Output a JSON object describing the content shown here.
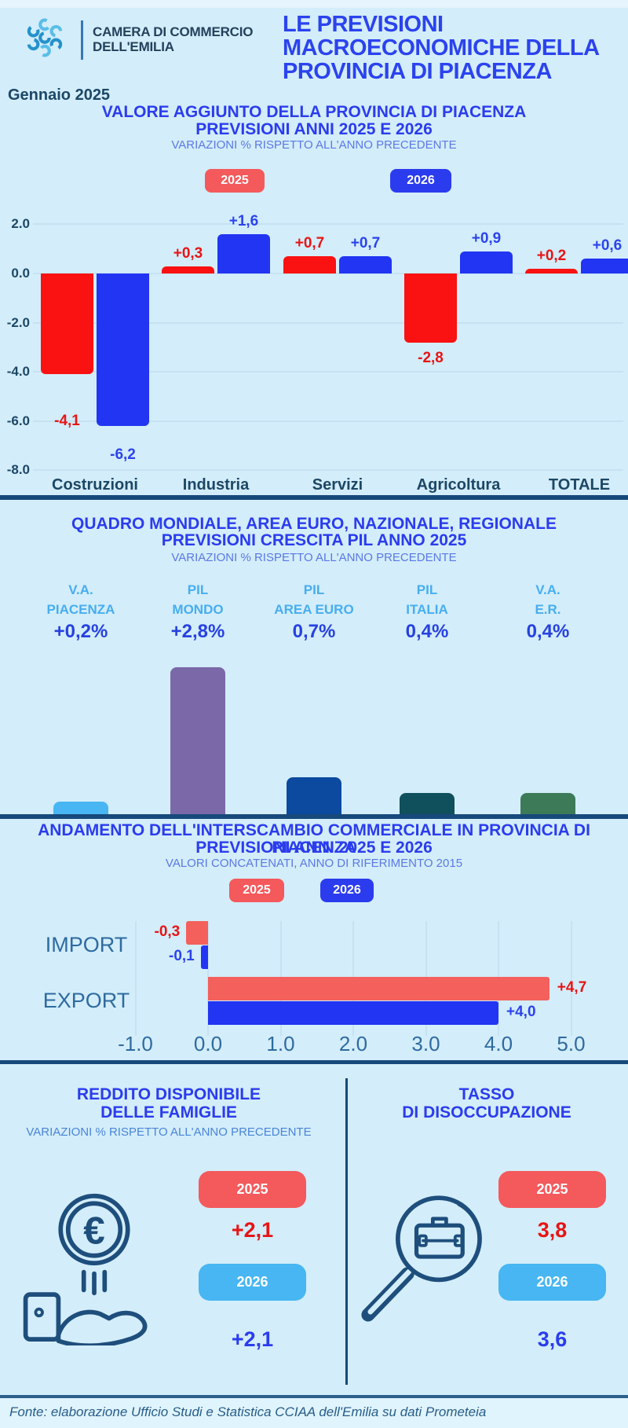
{
  "colors": {
    "background": "#d3edfa",
    "accent_blue": "#2b3cee",
    "subtitle_blue": "#5b79e4",
    "navy": "#1c4766",
    "steel_blue": "#2e6ba0",
    "red": "#fa1111",
    "salmon": "#f4595c",
    "bar_blue": "#2135f2",
    "light_blue_badge": "#47b6f2",
    "purple": "#7a68a8",
    "dark_blue": "#0c4aa0",
    "teal": "#10505c",
    "green": "#3d7a58"
  },
  "header": {
    "brand_line1": "CAMERA DI COMMERCIO",
    "brand_line2": "DELL'EMILIA",
    "title_line1": "LE PREVISIONI",
    "title_line2": "MACROECONOMICHE DELLA",
    "title_line3": "PROVINCIA DI PIACENZA",
    "date": "Gennaio 2025"
  },
  "section1": {
    "title_line1": "VALORE AGGIUNTO DELLA PROVINCIA DI PIACENZA",
    "title_line2": "PREVISIONI ANNI 2025 E 2026",
    "subtitle": "VARIAZIONI % RISPETTO ALL'ANNO PRECEDENTE",
    "legend": [
      {
        "label": "2025"
      },
      {
        "label": "2026"
      }
    ]
  },
  "section2": {
    "title_line1": "QUADRO MONDIALE, AREA EURO, NAZIONALE, REGIONALE",
    "title_line2": "PREVISIONI CRESCITA PIL ANNO 2025",
    "subtitle": "VARIAZIONI % RISPETTO ALL'ANNO PRECEDENTE"
  },
  "section3": {
    "title_line1": "ANDAMENTO DELL'INTERSCAMBIO COMMERCIALE IN PROVINCIA DI PIACENZA",
    "title_line2": "PREVISIONI ANNI  2025 E 2026",
    "subtitle": "VALORI CONCATENATI, ANNO DI RIFERIMENTO 2015",
    "legend": [
      {
        "label": "2025"
      },
      {
        "label": "2026"
      }
    ]
  },
  "chart_data": [
    {
      "id": "valore-aggiunto",
      "type": "bar",
      "title": "VALORE AGGIUNTO DELLA PROVINCIA DI PIACENZA PREVISIONI ANNI 2025 E 2026",
      "subtitle": "VARIAZIONI % RISPETTO ALL'ANNO PRECEDENTE",
      "categories": [
        "Costruzioni",
        "Industria",
        "Servizi",
        "Agricoltura",
        "TOTALE"
      ],
      "series": [
        {
          "name": "2025",
          "color": "#fa1111",
          "label_color": "#e81414",
          "values": [
            -4.1,
            0.3,
            0.7,
            -2.8,
            0.2
          ],
          "labels": [
            "-4,1",
            "+0,3",
            "+0,7",
            "-2,8",
            "+0,2"
          ],
          "label_dy": [
            40,
            0,
            0,
            0,
            0
          ]
        },
        {
          "name": "2026",
          "color": "#2135f2",
          "label_color": "#2b43ee",
          "values": [
            -6.2,
            1.6,
            0.7,
            0.9,
            0.6
          ],
          "labels": [
            "-6,2",
            "+1,6",
            "+0,7",
            "+0,9",
            "+0,6"
          ],
          "label_dy": [
            17,
            0,
            0,
            0,
            0
          ]
        }
      ],
      "yticks": [
        "2.0",
        "0.0",
        "-2.0",
        "-4.0",
        "-6.0",
        "-8.0"
      ],
      "ylim": [
        -8,
        2
      ],
      "grid": true,
      "legend_position": "top"
    },
    {
      "id": "pil-crescita-2025",
      "type": "bar",
      "title": "QUADRO MONDIALE, AREA EURO, NAZIONALE, REGIONALE PREVISIONI CRESCITA PIL ANNO 2025",
      "subtitle": "VARIAZIONI % RISPETTO ALL'ANNO PRECEDENTE",
      "columns": [
        {
          "header_line1": "V.A.",
          "header_line2": "PIACENZA",
          "value_label": "+0,2%",
          "value": 0.2,
          "color": "#47b6f2"
        },
        {
          "header_line1": "PIL",
          "header_line2": "MONDO",
          "value_label": "+2,8%",
          "value": 2.8,
          "color": "#7a68a8"
        },
        {
          "header_line1": "PIL",
          "header_line2": "AREA EURO",
          "value_label": "0,7%",
          "value": 0.7,
          "color": "#0c4aa0"
        },
        {
          "header_line1": "PIL",
          "header_line2": "ITALIA",
          "value_label": "0,4%",
          "value": 0.4,
          "color": "#10505c"
        },
        {
          "header_line1": "V.A.",
          "header_line2": "E.R.",
          "value_label": "0,4%",
          "value": 0.4,
          "color": "#3d7a58"
        }
      ]
    },
    {
      "id": "interscambio-commerciale",
      "type": "bar",
      "orientation": "horizontal",
      "title": "ANDAMENTO DELL'INTERSCAMBIO COMMERCIALE IN PROVINCIA DI PIACENZA PREVISIONI ANNI 2025 E 2026",
      "subtitle": "VALORI CONCATENATI, ANNO DI RIFERIMENTO 2015",
      "categories": [
        "IMPORT",
        "EXPORT"
      ],
      "series": [
        {
          "name": "2025",
          "color": "#f4605c",
          "label_color": "#e81414",
          "values": [
            -0.3,
            4.7
          ],
          "labels": [
            "-0,3",
            "+4,7"
          ]
        },
        {
          "name": "2026",
          "color": "#2135f2",
          "label_color": "#2b43ee",
          "values": [
            -0.1,
            4.0
          ],
          "labels": [
            "-0,1",
            "+4,0"
          ]
        }
      ],
      "xticks": [
        "-1.0",
        "0.0",
        "1.0",
        "2.0",
        "3.0",
        "4.0",
        "5.0"
      ],
      "xlim": [
        -1,
        5
      ],
      "grid": true,
      "legend_position": "top"
    }
  ],
  "panels": {
    "reddito": {
      "title_line1": "REDDITO DISPONIBILE",
      "title_line2": "DELLE FAMIGLIE",
      "subtitle": "VARIAZIONI % RISPETTO ALL'ANNO PRECEDENTE",
      "icon": "hand-euro-icon",
      "year1": "2025",
      "value1": "+2,1",
      "year2": "2026",
      "value2": "+2,1"
    },
    "tasso": {
      "title_line1": "TASSO",
      "title_line2": "DI DISOCCUPAZIONE",
      "icon": "magnifier-briefcase-icon",
      "year1": "2025",
      "value1": "3,8",
      "year2": "2026",
      "value2": "3,6"
    }
  },
  "footer": {
    "source": "Fonte: elaborazione Ufficio Studi e Statistica CCIAA dell'Emilia su dati Prometeia"
  }
}
